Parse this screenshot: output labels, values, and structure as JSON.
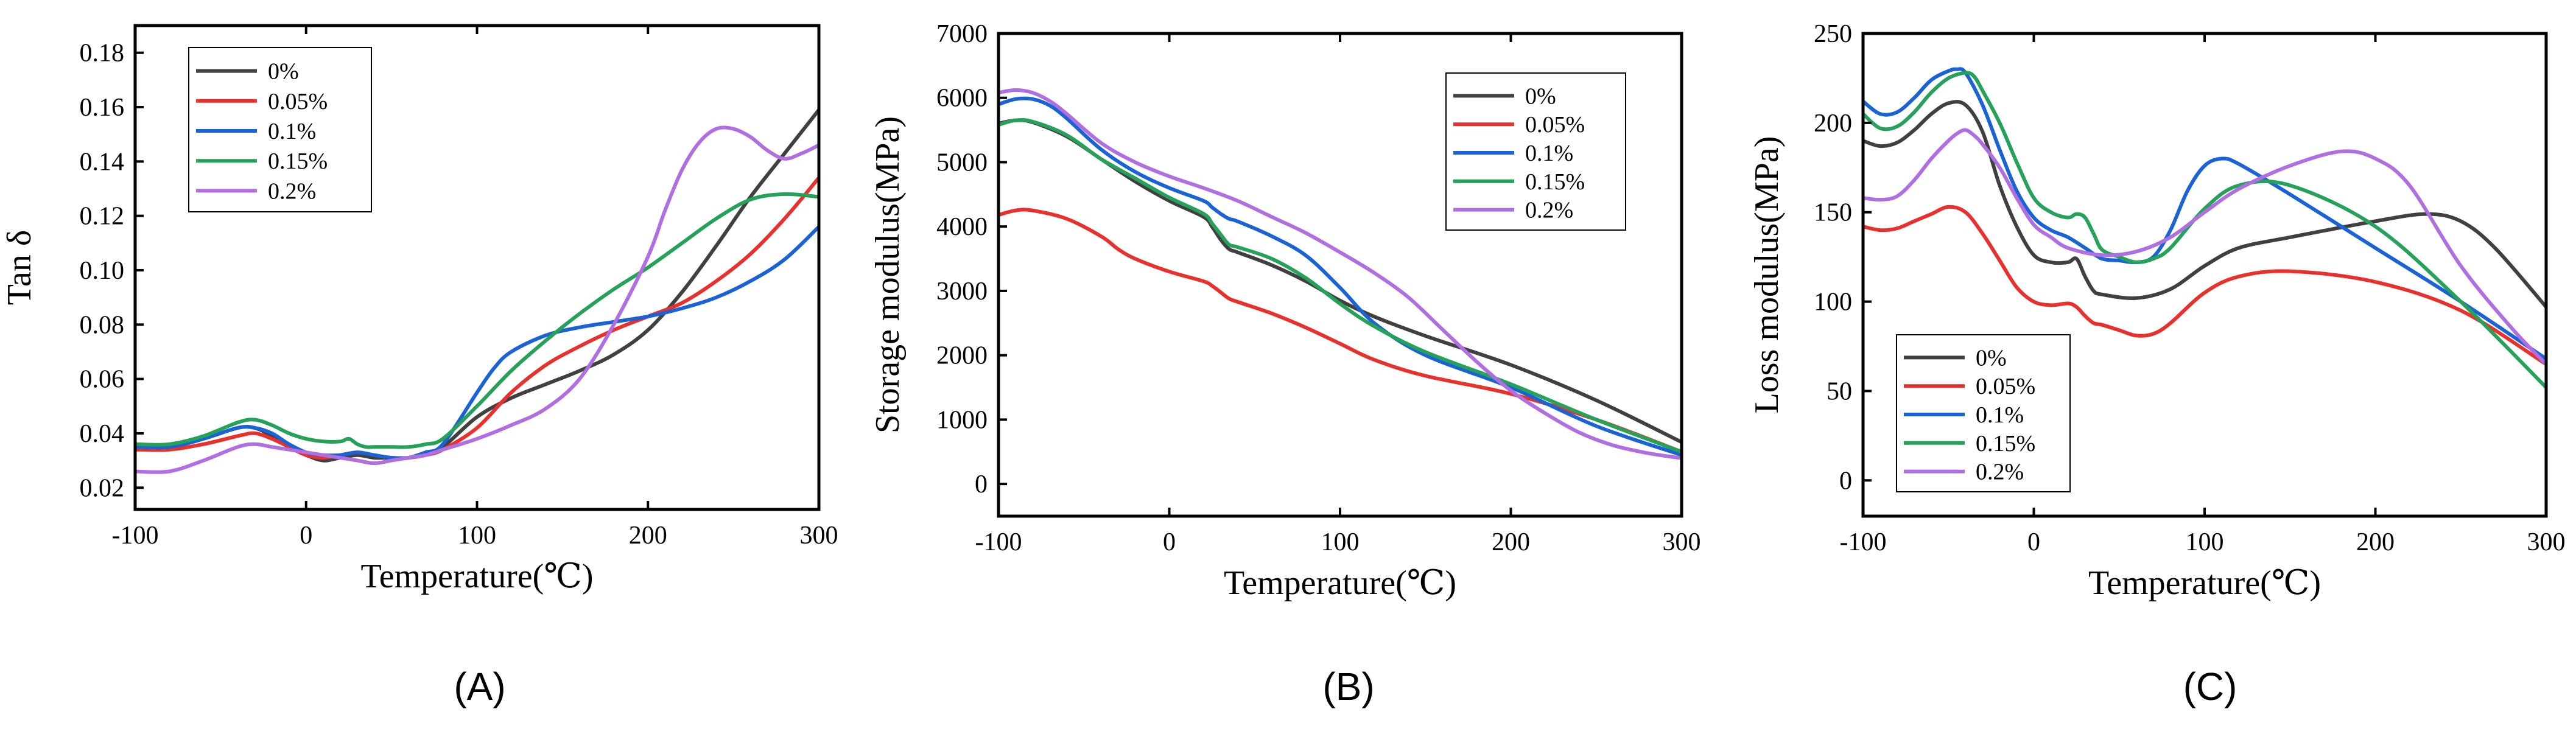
{
  "colors": {
    "0%": "#404040",
    "0.05%": "#e8302d",
    "0.1%": "#1a63d6",
    "0.15%": "#26a15a",
    "0.2%": "#b06fe0"
  },
  "chart_data": [
    {
      "type": "line",
      "panel_label": "(A)",
      "title": "",
      "xlabel": "Temperature(℃)",
      "ylabel": "Tan δ",
      "xlim": [
        -100,
        300
      ],
      "ylim": [
        0.012,
        0.19
      ],
      "xticks": [
        -100,
        0,
        100,
        200,
        300
      ],
      "yticks": [
        0.02,
        0.04,
        0.06,
        0.08,
        0.1,
        0.12,
        0.14,
        0.16,
        0.18
      ],
      "xtick_labels": [
        "-100",
        "0",
        "100",
        "200",
        "300"
      ],
      "ytick_labels": [
        "0.02",
        "0.04",
        "0.06",
        "0.08",
        "0.10",
        "0.12",
        "0.14",
        "0.16",
        "0.18"
      ],
      "legend": "top-left",
      "series": [
        {
          "name": "0%",
          "x": [
            -100,
            -80,
            -60,
            -40,
            -30,
            -20,
            -10,
            0,
            10,
            20,
            30,
            40,
            50,
            60,
            70,
            80,
            100,
            120,
            140,
            160,
            180,
            200,
            220,
            240,
            260,
            280,
            300
          ],
          "y": [
            0.036,
            0.035,
            0.038,
            0.042,
            0.042,
            0.039,
            0.035,
            0.032,
            0.03,
            0.031,
            0.032,
            0.031,
            0.031,
            0.031,
            0.033,
            0.035,
            0.046,
            0.053,
            0.058,
            0.063,
            0.069,
            0.078,
            0.092,
            0.109,
            0.127,
            0.143,
            0.159
          ]
        },
        {
          "name": "0.05%",
          "x": [
            -100,
            -80,
            -60,
            -40,
            -30,
            -20,
            -10,
            0,
            10,
            20,
            30,
            40,
            50,
            60,
            70,
            80,
            100,
            120,
            140,
            160,
            180,
            200,
            220,
            240,
            260,
            280,
            300
          ],
          "y": [
            0.034,
            0.034,
            0.036,
            0.039,
            0.04,
            0.038,
            0.035,
            0.032,
            0.031,
            0.032,
            0.033,
            0.032,
            0.031,
            0.031,
            0.032,
            0.034,
            0.042,
            0.055,
            0.065,
            0.072,
            0.078,
            0.083,
            0.088,
            0.096,
            0.106,
            0.119,
            0.134
          ]
        },
        {
          "name": "0.1%",
          "x": [
            -100,
            -80,
            -60,
            -40,
            -30,
            -20,
            -10,
            0,
            10,
            20,
            30,
            40,
            50,
            60,
            70,
            80,
            100,
            110,
            120,
            140,
            160,
            180,
            200,
            220,
            240,
            260,
            280,
            300
          ],
          "y": [
            0.035,
            0.035,
            0.038,
            0.042,
            0.042,
            0.04,
            0.036,
            0.033,
            0.032,
            0.032,
            0.033,
            0.032,
            0.031,
            0.031,
            0.033,
            0.036,
            0.055,
            0.064,
            0.07,
            0.076,
            0.079,
            0.081,
            0.083,
            0.086,
            0.09,
            0.096,
            0.104,
            0.116
          ]
        },
        {
          "name": "0.15%",
          "x": [
            -100,
            -80,
            -60,
            -40,
            -30,
            -20,
            -10,
            0,
            10,
            20,
            25,
            30,
            35,
            40,
            50,
            60,
            70,
            80,
            100,
            120,
            140,
            160,
            180,
            200,
            220,
            240,
            260,
            280,
            300
          ],
          "y": [
            0.036,
            0.036,
            0.039,
            0.044,
            0.045,
            0.043,
            0.04,
            0.038,
            0.037,
            0.037,
            0.038,
            0.036,
            0.035,
            0.035,
            0.035,
            0.035,
            0.036,
            0.038,
            0.05,
            0.063,
            0.074,
            0.084,
            0.093,
            0.101,
            0.11,
            0.119,
            0.126,
            0.128,
            0.127
          ]
        },
        {
          "name": "0.2%",
          "x": [
            -100,
            -80,
            -60,
            -40,
            -30,
            -20,
            -10,
            0,
            10,
            20,
            30,
            40,
            50,
            60,
            70,
            80,
            100,
            120,
            140,
            160,
            180,
            200,
            210,
            220,
            230,
            240,
            250,
            260,
            270,
            280,
            290,
            300
          ],
          "y": [
            0.026,
            0.026,
            0.03,
            0.035,
            0.036,
            0.035,
            0.034,
            0.033,
            0.032,
            0.031,
            0.03,
            0.029,
            0.03,
            0.031,
            0.032,
            0.034,
            0.038,
            0.043,
            0.049,
            0.06,
            0.08,
            0.105,
            0.122,
            0.137,
            0.147,
            0.152,
            0.152,
            0.149,
            0.144,
            0.141,
            0.143,
            0.146
          ]
        }
      ]
    },
    {
      "type": "line",
      "panel_label": "(B)",
      "title": "",
      "xlabel": "Temperature(℃)",
      "ylabel": "Storage modulus(MPa)",
      "xlim": [
        -100,
        300
      ],
      "ylim": [
        -500,
        7000
      ],
      "xticks": [
        -100,
        0,
        100,
        200,
        300
      ],
      "yticks": [
        0,
        1000,
        2000,
        3000,
        4000,
        5000,
        6000,
        7000
      ],
      "xtick_labels": [
        "-100",
        "0",
        "100",
        "200",
        "300"
      ],
      "ytick_labels": [
        "0",
        "1000",
        "2000",
        "3000",
        "4000",
        "5000",
        "6000",
        "7000"
      ],
      "legend": "top-right",
      "series": [
        {
          "name": "0%",
          "x": [
            -100,
            -90,
            -80,
            -60,
            -40,
            -20,
            0,
            20,
            25,
            30,
            35,
            40,
            60,
            80,
            100,
            120,
            150,
            200,
            250,
            300
          ],
          "y": [
            5600,
            5650,
            5620,
            5400,
            5050,
            4700,
            4400,
            4150,
            4000,
            3800,
            3650,
            3600,
            3400,
            3150,
            2850,
            2600,
            2300,
            1850,
            1300,
            650
          ]
        },
        {
          "name": "0.05%",
          "x": [
            -100,
            -90,
            -80,
            -60,
            -40,
            -30,
            -20,
            0,
            20,
            25,
            30,
            35,
            40,
            60,
            80,
            100,
            120,
            150,
            200,
            250,
            300
          ],
          "y": [
            4180,
            4250,
            4250,
            4120,
            3850,
            3650,
            3500,
            3300,
            3150,
            3080,
            2980,
            2880,
            2830,
            2650,
            2430,
            2180,
            1930,
            1680,
            1400,
            1000,
            500
          ]
        },
        {
          "name": "0.1%",
          "x": [
            -100,
            -90,
            -80,
            -70,
            -60,
            -40,
            -20,
            0,
            20,
            25,
            30,
            35,
            40,
            60,
            80,
            100,
            120,
            150,
            200,
            250,
            300
          ],
          "y": [
            5900,
            5980,
            5980,
            5880,
            5680,
            5200,
            4850,
            4600,
            4400,
            4300,
            4200,
            4120,
            4080,
            3850,
            3550,
            3050,
            2500,
            2000,
            1500,
            900,
            450
          ]
        },
        {
          "name": "0.15%",
          "x": [
            -100,
            -90,
            -80,
            -60,
            -40,
            -20,
            0,
            20,
            25,
            30,
            35,
            40,
            60,
            80,
            100,
            120,
            150,
            200,
            250,
            300
          ],
          "y": [
            5580,
            5650,
            5630,
            5420,
            5050,
            4750,
            4450,
            4200,
            4050,
            3880,
            3720,
            3680,
            3500,
            3200,
            2800,
            2450,
            2050,
            1550,
            1000,
            500
          ]
        },
        {
          "name": "0.2%",
          "x": [
            -100,
            -90,
            -80,
            -70,
            -60,
            -40,
            -20,
            0,
            20,
            40,
            60,
            80,
            100,
            120,
            140,
            160,
            180,
            200,
            220,
            240,
            260,
            280,
            300
          ],
          "y": [
            6080,
            6120,
            6080,
            5950,
            5750,
            5300,
            5000,
            4780,
            4600,
            4400,
            4150,
            3900,
            3600,
            3280,
            2900,
            2400,
            1900,
            1450,
            1100,
            800,
            600,
            480,
            400
          ]
        }
      ]
    },
    {
      "type": "line",
      "panel_label": "(C)",
      "title": "",
      "xlabel": "Temperature(℃)",
      "ylabel": "Loss modulus(MPa)",
      "xlim": [
        -100,
        300
      ],
      "ylim": [
        -20,
        250
      ],
      "xticks": [
        -100,
        0,
        100,
        200,
        300
      ],
      "yticks": [
        0,
        50,
        100,
        150,
        200,
        250
      ],
      "xtick_labels": [
        "-100",
        "0",
        "100",
        "200",
        "300"
      ],
      "ytick_labels": [
        "0",
        "50",
        "100",
        "150",
        "200",
        "250"
      ],
      "legend": "bottom-left",
      "series": [
        {
          "name": "0%",
          "x": [
            -100,
            -90,
            -80,
            -70,
            -60,
            -50,
            -40,
            -30,
            -20,
            -10,
            0,
            10,
            20,
            25,
            30,
            35,
            40,
            60,
            80,
            100,
            120,
            150,
            200,
            230,
            250,
            270,
            300
          ],
          "y": [
            190,
            187,
            189,
            196,
            205,
            211,
            210,
            195,
            165,
            142,
            126,
            122,
            122,
            124,
            114,
            106,
            104,
            102,
            107,
            120,
            130,
            136,
            145,
            149,
            145,
            130,
            97
          ]
        },
        {
          "name": "0.05%",
          "x": [
            -100,
            -90,
            -80,
            -70,
            -60,
            -50,
            -40,
            -30,
            -20,
            -10,
            0,
            10,
            20,
            25,
            30,
            35,
            40,
            50,
            60,
            70,
            80,
            100,
            120,
            150,
            200,
            250,
            300
          ],
          "y": [
            142,
            140,
            141,
            145,
            149,
            153,
            150,
            138,
            123,
            108,
            100,
            98,
            99,
            97,
            92,
            88,
            87,
            84,
            81,
            82,
            88,
            105,
            114,
            117,
            111,
            95,
            65
          ]
        },
        {
          "name": "0.1%",
          "x": [
            -100,
            -90,
            -80,
            -70,
            -60,
            -50,
            -45,
            -40,
            -30,
            -20,
            -10,
            0,
            10,
            20,
            30,
            40,
            50,
            60,
            70,
            80,
            90,
            100,
            110,
            120,
            150,
            200,
            250,
            300
          ],
          "y": [
            212,
            205,
            206,
            214,
            224,
            229,
            230,
            228,
            210,
            185,
            162,
            147,
            140,
            136,
            130,
            124,
            123,
            122,
            125,
            140,
            162,
            176,
            180,
            177,
            160,
            130,
            100,
            68
          ]
        },
        {
          "name": "0.15%",
          "x": [
            -100,
            -90,
            -80,
            -70,
            -60,
            -50,
            -40,
            -35,
            -30,
            -20,
            -10,
            0,
            10,
            20,
            25,
            30,
            35,
            40,
            50,
            60,
            70,
            80,
            100,
            120,
            150,
            200,
            250,
            300
          ],
          "y": [
            205,
            197,
            198,
            206,
            217,
            225,
            228,
            226,
            218,
            200,
            178,
            158,
            150,
            147,
            149,
            147,
            138,
            129,
            125,
            122,
            124,
            130,
            152,
            165,
            165,
            142,
            100,
            52
          ]
        },
        {
          "name": "0.2%",
          "x": [
            -100,
            -90,
            -80,
            -70,
            -60,
            -50,
            -45,
            -40,
            -35,
            -30,
            -20,
            -10,
            0,
            10,
            20,
            40,
            60,
            80,
            100,
            120,
            150,
            180,
            200,
            220,
            250,
            280,
            300
          ],
          "y": [
            158,
            157,
            159,
            168,
            180,
            190,
            194,
            196,
            193,
            188,
            175,
            158,
            143,
            136,
            130,
            126,
            128,
            136,
            150,
            163,
            176,
            184,
            180,
            165,
            120,
            85,
            65
          ]
        }
      ]
    }
  ]
}
